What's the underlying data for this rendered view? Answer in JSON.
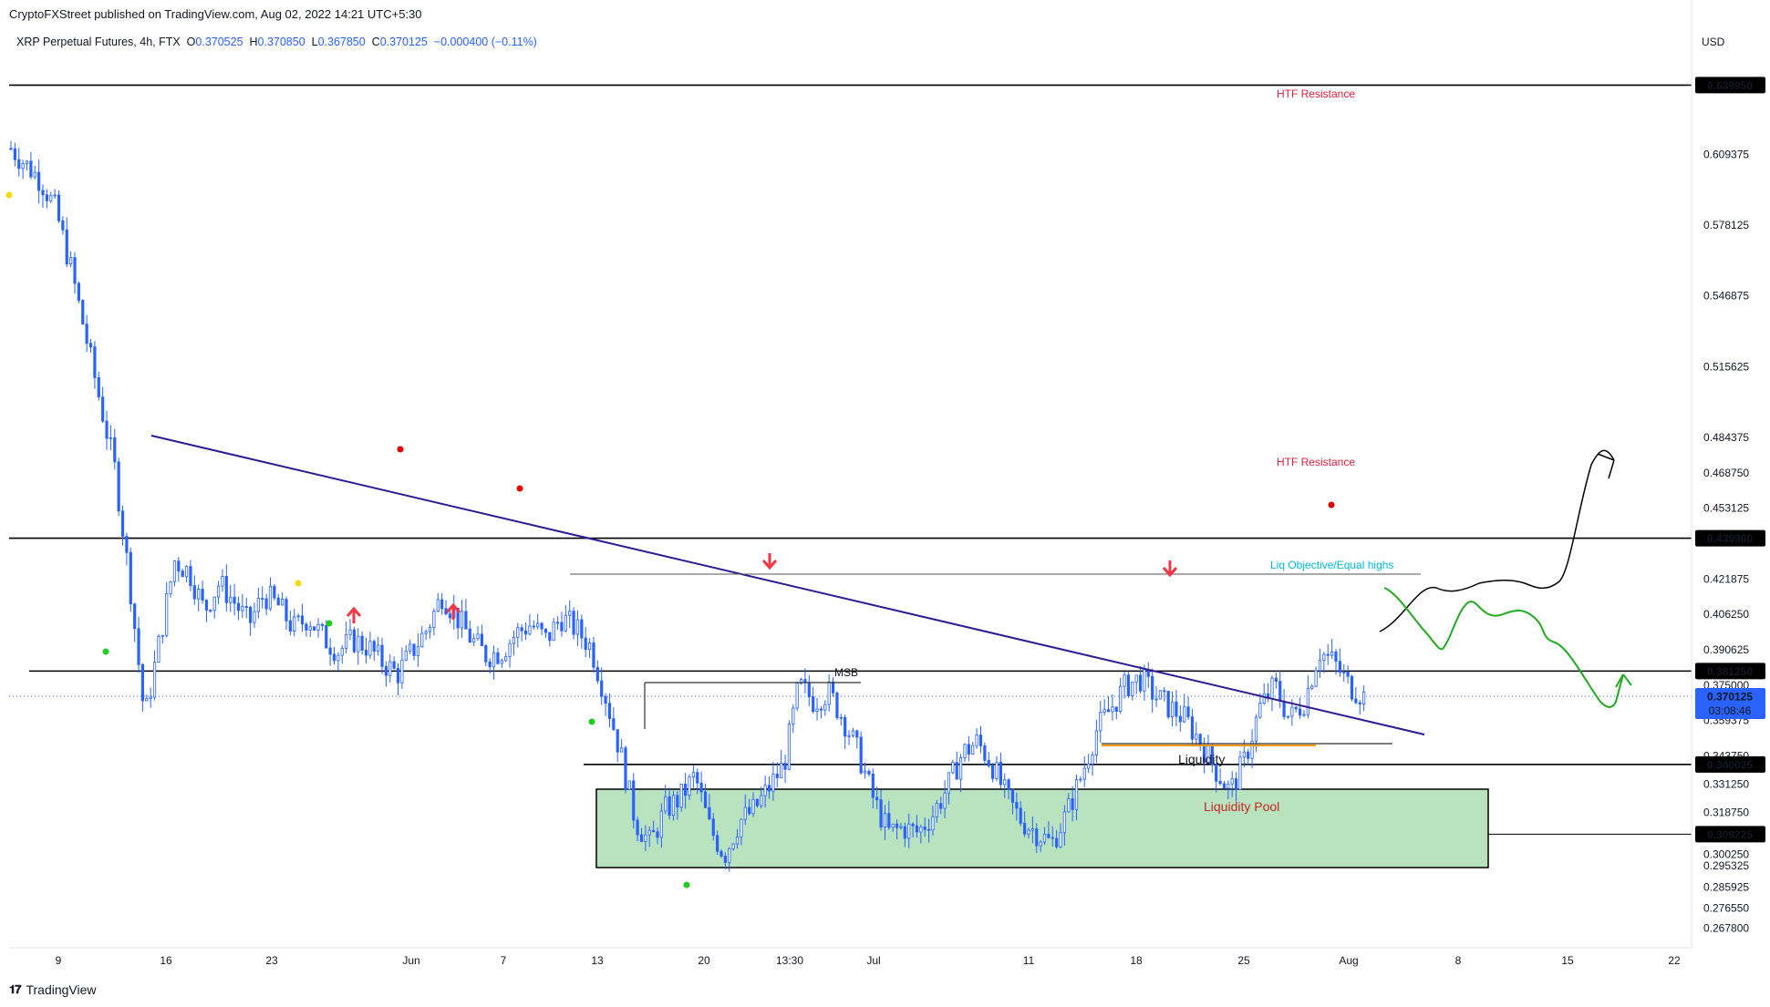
{
  "header": {
    "publish_line": "CryptoFXStreet published on TradingView.com, Aug 02, 2022 14:21 UTC+5:30",
    "symbol": "XRP Perpetual Futures, 4h, FTX",
    "open_label": "O",
    "open": "0.370525",
    "high_label": "H",
    "high": "0.370850",
    "low_label": "L",
    "low": "0.367850",
    "close_label": "C",
    "close": "0.370125",
    "change": "−0.000400 (−0.11%)",
    "currency": "USD"
  },
  "footer": {
    "brand": "TradingView"
  },
  "colors": {
    "candle": "#2962ff",
    "trendline": "#311b92",
    "resistance_text": "#e91e3b",
    "green_zone": "#b9e2bf",
    "price_tag": "#2962ff",
    "projection_green": "#22ab22"
  },
  "chart_data": {
    "type": "candlestick",
    "title": "XRP Perpetual Futures, 4h, FTX",
    "ylim": [
      0.2615,
      0.6542
    ],
    "x_ticks": [
      "9",
      "16",
      "23",
      "Jun",
      "7",
      "13",
      "20",
      "13:30",
      "Jul",
      "11",
      "18",
      "25",
      "Aug",
      "8",
      "15",
      "22"
    ],
    "y_ticks": [
      "0.609375",
      "0.578125",
      "0.546875",
      "0.515625",
      "0.484375",
      "0.468750",
      "0.453125",
      "0.421875",
      "0.406250",
      "0.390625",
      "0.375000",
      "0.359375",
      "0.343750",
      "0.331250",
      "0.318750",
      "0.300250",
      "0.295325",
      "0.285925",
      "0.276550",
      "0.267800"
    ],
    "y_tick_values": [
      0.609375,
      0.578125,
      0.546875,
      0.515625,
      0.484375,
      0.46875,
      0.453125,
      0.421875,
      0.40625,
      0.390625,
      0.375,
      0.359375,
      0.34375,
      0.33125,
      0.31875,
      0.30025,
      0.295325,
      0.285925,
      0.27655,
      0.2678
    ],
    "horizontal_levels": [
      {
        "label": "0.639950",
        "value": 0.63995,
        "note": "HTF Resistance"
      },
      {
        "label": "0.439900",
        "value": 0.4399,
        "note": "HTF Resistance"
      },
      {
        "label": "0.381250",
        "value": 0.38125,
        "note": ""
      },
      {
        "label": "0.340025",
        "value": 0.340025,
        "note": ""
      },
      {
        "label": "0.309225",
        "value": 0.309225,
        "note": ""
      }
    ],
    "current_price": {
      "value": 0.370125,
      "label": "0.370125",
      "countdown": "03:08:46"
    },
    "annotations": {
      "liq_objective": "Liq Objective/Equal highs",
      "msb": "MSB",
      "liquidity": "Liquidity",
      "liquidity_pool": "Liquidity Pool"
    },
    "approx_close_path": [
      0.612,
      0.605,
      0.598,
      0.585,
      0.56,
      0.53,
      0.5,
      0.47,
      0.42,
      0.36,
      0.395,
      0.43,
      0.425,
      0.408,
      0.42,
      0.412,
      0.402,
      0.415,
      0.41,
      0.4,
      0.405,
      0.396,
      0.39,
      0.395,
      0.392,
      0.385,
      0.38,
      0.39,
      0.4,
      0.415,
      0.405,
      0.395,
      0.388,
      0.39,
      0.398,
      0.402,
      0.395,
      0.405,
      0.4,
      0.392,
      0.37,
      0.345,
      0.315,
      0.305,
      0.32,
      0.325,
      0.335,
      0.312,
      0.3,
      0.315,
      0.32,
      0.33,
      0.34,
      0.375,
      0.368,
      0.372,
      0.36,
      0.345,
      0.325,
      0.31,
      0.312,
      0.31,
      0.318,
      0.33,
      0.345,
      0.35,
      0.34,
      0.325,
      0.315,
      0.31,
      0.305,
      0.318,
      0.335,
      0.355,
      0.365,
      0.375,
      0.378,
      0.37,
      0.365,
      0.36,
      0.35,
      0.338,
      0.328,
      0.342,
      0.365,
      0.375,
      0.36,
      0.368,
      0.39,
      0.385,
      0.375,
      0.37
    ]
  }
}
